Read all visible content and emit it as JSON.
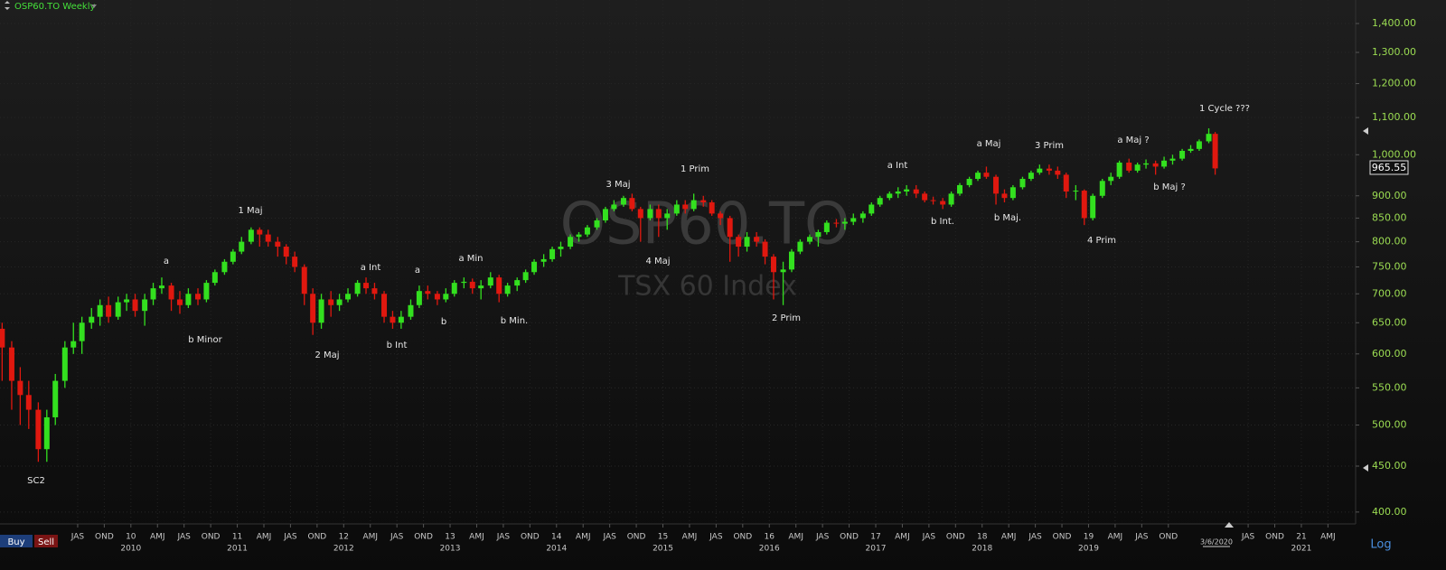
{
  "chart_data": {
    "type": "candlestick",
    "title": "OSP60.TO Weekly",
    "watermark": "OSP60.TO",
    "subtitle": "TSX 60 Index",
    "log_scale": true,
    "grid": true,
    "up_color": "#33e01f",
    "down_color": "#e0180f",
    "last_price": 965.55,
    "last_date": "3/6/2020",
    "buttons": [
      "Buy",
      "Sell"
    ],
    "scale_button": "Log",
    "xlim": [
      2008.77,
      2021.51
    ],
    "ylim": [
      388,
      1487
    ],
    "yticks": [
      {
        "value": 400,
        "label": "400.00"
      },
      {
        "value": 450,
        "label": "450.00"
      },
      {
        "value": 500,
        "label": "500.00"
      },
      {
        "value": 550,
        "label": "550.00"
      },
      {
        "value": 600,
        "label": "600.00"
      },
      {
        "value": 650,
        "label": "650.00"
      },
      {
        "value": 700,
        "label": "700.00"
      },
      {
        "value": 750,
        "label": "750.00"
      },
      {
        "value": 800,
        "label": "800.00"
      },
      {
        "value": 850,
        "label": "850.00"
      },
      {
        "value": 900,
        "label": "900.00"
      },
      {
        "value": 1000,
        "label": "1,000.00"
      },
      {
        "value": 1100,
        "label": "1,100.00"
      },
      {
        "value": 1200,
        "label": "1,200.00"
      },
      {
        "value": 1300,
        "label": "1,300.00"
      },
      {
        "value": 1400,
        "label": "1,400.00"
      }
    ],
    "xticks": [
      {
        "value": 2009.5,
        "label": "JAS"
      },
      {
        "value": 2009.75,
        "label": "OND"
      },
      {
        "value": 2010,
        "label": "10"
      },
      {
        "value": 2010.25,
        "label": "AMJ"
      },
      {
        "value": 2010.5,
        "label": "JAS"
      },
      {
        "value": 2010.75,
        "label": "OND"
      },
      {
        "value": 2011,
        "label": "11"
      },
      {
        "value": 2011.25,
        "label": "AMJ"
      },
      {
        "value": 2011.5,
        "label": "JAS"
      },
      {
        "value": 2011.75,
        "label": "OND"
      },
      {
        "value": 2012,
        "label": "12"
      },
      {
        "value": 2012.25,
        "label": "AMJ"
      },
      {
        "value": 2012.5,
        "label": "JAS"
      },
      {
        "value": 2012.75,
        "label": "OND"
      },
      {
        "value": 2013,
        "label": "13"
      },
      {
        "value": 2013.25,
        "label": "AMJ"
      },
      {
        "value": 2013.5,
        "label": "JAS"
      },
      {
        "value": 2013.75,
        "label": "OND"
      },
      {
        "value": 2014,
        "label": "14"
      },
      {
        "value": 2014.25,
        "label": "AMJ"
      },
      {
        "value": 2014.5,
        "label": "JAS"
      },
      {
        "value": 2014.75,
        "label": "OND"
      },
      {
        "value": 2015,
        "label": "15"
      },
      {
        "value": 2015.25,
        "label": "AMJ"
      },
      {
        "value": 2015.5,
        "label": "JAS"
      },
      {
        "value": 2015.75,
        "label": "OND"
      },
      {
        "value": 2016,
        "label": "16"
      },
      {
        "value": 2016.25,
        "label": "AMJ"
      },
      {
        "value": 2016.5,
        "label": "JAS"
      },
      {
        "value": 2016.75,
        "label": "OND"
      },
      {
        "value": 2017,
        "label": "17"
      },
      {
        "value": 2017.25,
        "label": "AMJ"
      },
      {
        "value": 2017.5,
        "label": "JAS"
      },
      {
        "value": 2017.75,
        "label": "OND"
      },
      {
        "value": 2018,
        "label": "18"
      },
      {
        "value": 2018.25,
        "label": "AMJ"
      },
      {
        "value": 2018.5,
        "label": "JAS"
      },
      {
        "value": 2018.75,
        "label": "OND"
      },
      {
        "value": 2019,
        "label": "19"
      },
      {
        "value": 2019.25,
        "label": "AMJ"
      },
      {
        "value": 2019.5,
        "label": "JAS"
      },
      {
        "value": 2019.75,
        "label": "OND"
      },
      {
        "value": 2020.5,
        "label": "JAS"
      },
      {
        "value": 2020.75,
        "label": "OND"
      },
      {
        "value": 2021,
        "label": "21"
      },
      {
        "value": 2021.25,
        "label": "AMJ"
      }
    ],
    "year_ticks": [
      {
        "value": 2010,
        "label": "2010"
      },
      {
        "value": 2011,
        "label": "2011"
      },
      {
        "value": 2012,
        "label": "2012"
      },
      {
        "value": 2013,
        "label": "2013"
      },
      {
        "value": 2014,
        "label": "2014"
      },
      {
        "value": 2015,
        "label": "2015"
      },
      {
        "value": 2016,
        "label": "2016"
      },
      {
        "value": 2017,
        "label": "2017"
      },
      {
        "value": 2018,
        "label": "2018"
      },
      {
        "value": 2019,
        "label": "2019"
      },
      {
        "value": 2021,
        "label": "2021"
      }
    ],
    "x": [
      2008.79,
      2008.88,
      2008.96,
      2009.04,
      2009.13,
      2009.21,
      2009.29,
      2009.38,
      2009.46,
      2009.54,
      2009.63,
      2009.71,
      2009.79,
      2009.88,
      2009.96,
      2010.04,
      2010.13,
      2010.21,
      2010.29,
      2010.38,
      2010.46,
      2010.54,
      2010.63,
      2010.71,
      2010.79,
      2010.88,
      2010.96,
      2011.04,
      2011.13,
      2011.21,
      2011.29,
      2011.38,
      2011.46,
      2011.54,
      2011.63,
      2011.71,
      2011.79,
      2011.88,
      2011.96,
      2012.04,
      2012.13,
      2012.21,
      2012.29,
      2012.38,
      2012.46,
      2012.54,
      2012.63,
      2012.71,
      2012.79,
      2012.88,
      2012.96,
      2013.04,
      2013.13,
      2013.21,
      2013.29,
      2013.38,
      2013.46,
      2013.54,
      2013.63,
      2013.71,
      2013.79,
      2013.88,
      2013.96,
      2014.04,
      2014.13,
      2014.21,
      2014.29,
      2014.38,
      2014.46,
      2014.54,
      2014.63,
      2014.71,
      2014.79,
      2014.88,
      2014.96,
      2015.04,
      2015.13,
      2015.21,
      2015.29,
      2015.38,
      2015.46,
      2015.54,
      2015.63,
      2015.71,
      2015.79,
      2015.88,
      2015.96,
      2016.04,
      2016.13,
      2016.21,
      2016.29,
      2016.38,
      2016.46,
      2016.54,
      2016.63,
      2016.71,
      2016.79,
      2016.88,
      2016.96,
      2017.04,
      2017.13,
      2017.21,
      2017.29,
      2017.38,
      2017.46,
      2017.54,
      2017.63,
      2017.71,
      2017.79,
      2017.88,
      2017.96,
      2018.04,
      2018.13,
      2018.21,
      2018.29,
      2018.38,
      2018.46,
      2018.54,
      2018.63,
      2018.71,
      2018.79,
      2018.88,
      2018.96,
      2019.04,
      2019.13,
      2019.21,
      2019.29,
      2019.38,
      2019.46,
      2019.54,
      2019.63,
      2019.71,
      2019.79,
      2019.88,
      2019.96,
      2020.04,
      2020.13,
      2020.19
    ],
    "open": [
      640,
      610,
      560,
      540,
      520,
      470,
      510,
      560,
      610,
      620,
      650,
      660,
      680,
      660,
      685,
      690,
      670,
      690,
      710,
      715,
      690,
      680,
      700,
      690,
      720,
      740,
      760,
      780,
      800,
      825,
      815,
      800,
      790,
      770,
      750,
      700,
      650,
      690,
      680,
      690,
      700,
      720,
      710,
      700,
      660,
      650,
      660,
      680,
      705,
      700,
      690,
      700,
      720,
      722,
      710,
      715,
      730,
      700,
      715,
      725,
      740,
      760,
      765,
      785,
      790,
      810,
      815,
      830,
      845,
      870,
      880,
      895,
      870,
      850,
      870,
      850,
      860,
      880,
      870,
      890,
      885,
      860,
      850,
      810,
      790,
      810,
      800,
      770,
      740,
      745,
      780,
      800,
      810,
      820,
      840,
      838,
      842,
      850,
      860,
      880,
      895,
      905,
      910,
      915,
      905,
      890,
      888,
      880,
      905,
      925,
      940,
      955,
      945,
      905,
      895,
      920,
      940,
      955,
      965,
      960,
      950,
      910,
      912,
      850,
      900,
      935,
      945,
      980,
      960,
      975,
      978,
      970,
      985,
      990,
      1010,
      1015,
      1035,
      1055
    ],
    "close": [
      610,
      560,
      540,
      520,
      470,
      510,
      560,
      610,
      620,
      650,
      660,
      680,
      660,
      685,
      690,
      670,
      690,
      710,
      715,
      690,
      680,
      700,
      690,
      720,
      740,
      760,
      780,
      800,
      825,
      815,
      800,
      790,
      770,
      750,
      700,
      650,
      690,
      680,
      690,
      700,
      720,
      710,
      700,
      660,
      650,
      660,
      680,
      705,
      700,
      690,
      700,
      720,
      722,
      710,
      715,
      730,
      700,
      715,
      725,
      740,
      760,
      765,
      785,
      790,
      810,
      815,
      830,
      845,
      870,
      880,
      895,
      870,
      850,
      870,
      850,
      860,
      880,
      870,
      890,
      885,
      860,
      850,
      810,
      790,
      810,
      800,
      770,
      740,
      745,
      780,
      800,
      810,
      820,
      840,
      838,
      842,
      850,
      860,
      880,
      895,
      905,
      910,
      915,
      905,
      890,
      888,
      880,
      905,
      925,
      940,
      955,
      945,
      905,
      895,
      920,
      940,
      955,
      965,
      960,
      950,
      910,
      912,
      850,
      900,
      935,
      945,
      980,
      960,
      975,
      978,
      970,
      985,
      990,
      1010,
      1015,
      1035,
      1055,
      965.55
    ],
    "high": [
      650,
      620,
      580,
      560,
      530,
      520,
      570,
      620,
      650,
      660,
      675,
      690,
      695,
      695,
      700,
      700,
      700,
      720,
      730,
      720,
      705,
      710,
      710,
      725,
      745,
      765,
      785,
      810,
      830,
      830,
      825,
      810,
      795,
      780,
      755,
      710,
      700,
      705,
      700,
      710,
      725,
      730,
      720,
      705,
      670,
      670,
      690,
      715,
      715,
      705,
      710,
      725,
      730,
      728,
      725,
      740,
      735,
      720,
      730,
      745,
      765,
      775,
      790,
      800,
      815,
      820,
      835,
      850,
      875,
      890,
      900,
      905,
      875,
      880,
      880,
      870,
      890,
      890,
      905,
      900,
      890,
      865,
      855,
      815,
      820,
      820,
      805,
      775,
      760,
      785,
      805,
      815,
      825,
      845,
      848,
      850,
      860,
      865,
      885,
      900,
      910,
      920,
      925,
      925,
      910,
      898,
      895,
      910,
      930,
      945,
      960,
      970,
      950,
      915,
      925,
      945,
      960,
      975,
      975,
      970,
      955,
      925,
      915,
      905,
      940,
      955,
      985,
      990,
      980,
      988,
      985,
      995,
      1000,
      1015,
      1025,
      1040,
      1070,
      1060
    ],
    "low": [
      560,
      520,
      500,
      495,
      455,
      455,
      500,
      550,
      600,
      600,
      640,
      645,
      650,
      655,
      670,
      660,
      645,
      680,
      700,
      670,
      665,
      675,
      680,
      685,
      715,
      735,
      755,
      775,
      795,
      790,
      790,
      770,
      755,
      740,
      680,
      630,
      640,
      660,
      670,
      685,
      695,
      700,
      690,
      650,
      640,
      640,
      655,
      675,
      690,
      680,
      685,
      695,
      710,
      700,
      690,
      710,
      685,
      695,
      705,
      720,
      735,
      750,
      760,
      770,
      785,
      800,
      810,
      825,
      840,
      865,
      875,
      865,
      800,
      845,
      810,
      825,
      855,
      860,
      865,
      875,
      855,
      835,
      760,
      770,
      780,
      790,
      755,
      690,
      680,
      740,
      775,
      795,
      790,
      815,
      830,
      825,
      835,
      840,
      855,
      875,
      890,
      895,
      900,
      895,
      885,
      880,
      870,
      875,
      900,
      920,
      935,
      940,
      880,
      885,
      890,
      915,
      935,
      950,
      950,
      940,
      895,
      890,
      835,
      845,
      895,
      925,
      940,
      955,
      955,
      965,
      950,
      965,
      975,
      985,
      1005,
      1010,
      1030,
      950
    ],
    "annotations": [
      "SC2",
      "a",
      "b Minor",
      "1 Maj",
      "2 Maj",
      "a Int",
      "b Int",
      "a",
      "b",
      "a Min",
      "b Min.",
      "3 Maj",
      "4 Maj",
      "1 Prim",
      "2 Prim",
      "a Int",
      "b Int.",
      "a Maj",
      "b Maj.",
      "3 Prim",
      "4 Prim",
      "a Maj ?",
      "b Maj ?",
      "1 Cycle ???"
    ]
  }
}
